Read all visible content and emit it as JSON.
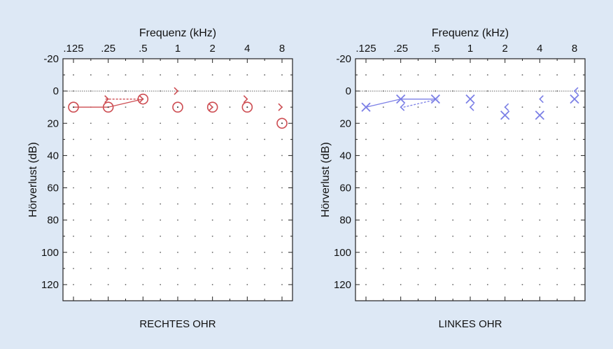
{
  "chart_data": [
    {
      "type": "scatter",
      "title": "RECHTES OHR",
      "xlabel": "Frequenz (kHz)",
      "ylabel": "Hörverlust (dB)",
      "x_ticks": [
        ".125",
        ".25",
        ".5",
        "1",
        "2",
        "4",
        "8"
      ],
      "x_scale": "log2",
      "y_ticks": [
        "-20",
        "0",
        "20",
        "40",
        "60",
        "80",
        "100",
        "120"
      ],
      "ylim": [
        -20,
        130
      ],
      "y_inverted": true,
      "grid": "dotted",
      "reference_line_db": 0,
      "color": "#cd4d52",
      "series": [
        {
          "symbol": "circle",
          "points": [
            [
              0.125,
              10
            ],
            [
              0.25,
              10
            ],
            [
              0.5,
              5
            ],
            [
              1,
              10
            ],
            [
              2,
              10
            ],
            [
              4,
              10
            ],
            [
              8,
              20
            ]
          ],
          "connected_until_khz": 0.5
        },
        {
          "symbol": "bracket-right",
          "points": [
            [
              0.25,
              5
            ],
            [
              0.5,
              5
            ],
            [
              1,
              0
            ],
            [
              2,
              10
            ],
            [
              4,
              5
            ],
            [
              8,
              10
            ]
          ],
          "connected_until_khz": 0.5,
          "dashed": true
        }
      ]
    },
    {
      "type": "scatter",
      "title": "LINKES OHR",
      "xlabel": "Frequenz (kHz)",
      "ylabel": "Hörverlust (dB)",
      "x_ticks": [
        ".125",
        ".25",
        ".5",
        "1",
        "2",
        "4",
        "8"
      ],
      "x_scale": "log2",
      "y_ticks": [
        "-20",
        "0",
        "20",
        "40",
        "60",
        "80",
        "100",
        "120"
      ],
      "ylim": [
        -20,
        130
      ],
      "y_inverted": true,
      "grid": "dotted",
      "reference_line_db": 0,
      "color": "#7b7fe6",
      "series": [
        {
          "symbol": "x",
          "points": [
            [
              0.125,
              10
            ],
            [
              0.25,
              5
            ],
            [
              0.5,
              5
            ],
            [
              1,
              5
            ],
            [
              2,
              15
            ],
            [
              4,
              15
            ],
            [
              8,
              5
            ]
          ],
          "connected_until_khz": 0.5
        },
        {
          "symbol": "bracket-left",
          "points": [
            [
              0.25,
              10
            ],
            [
              0.5,
              5
            ],
            [
              1,
              10
            ],
            [
              2,
              10
            ],
            [
              4,
              5
            ],
            [
              8,
              0
            ]
          ],
          "connected_until_khz": 0.5,
          "dashed": true
        }
      ]
    }
  ]
}
